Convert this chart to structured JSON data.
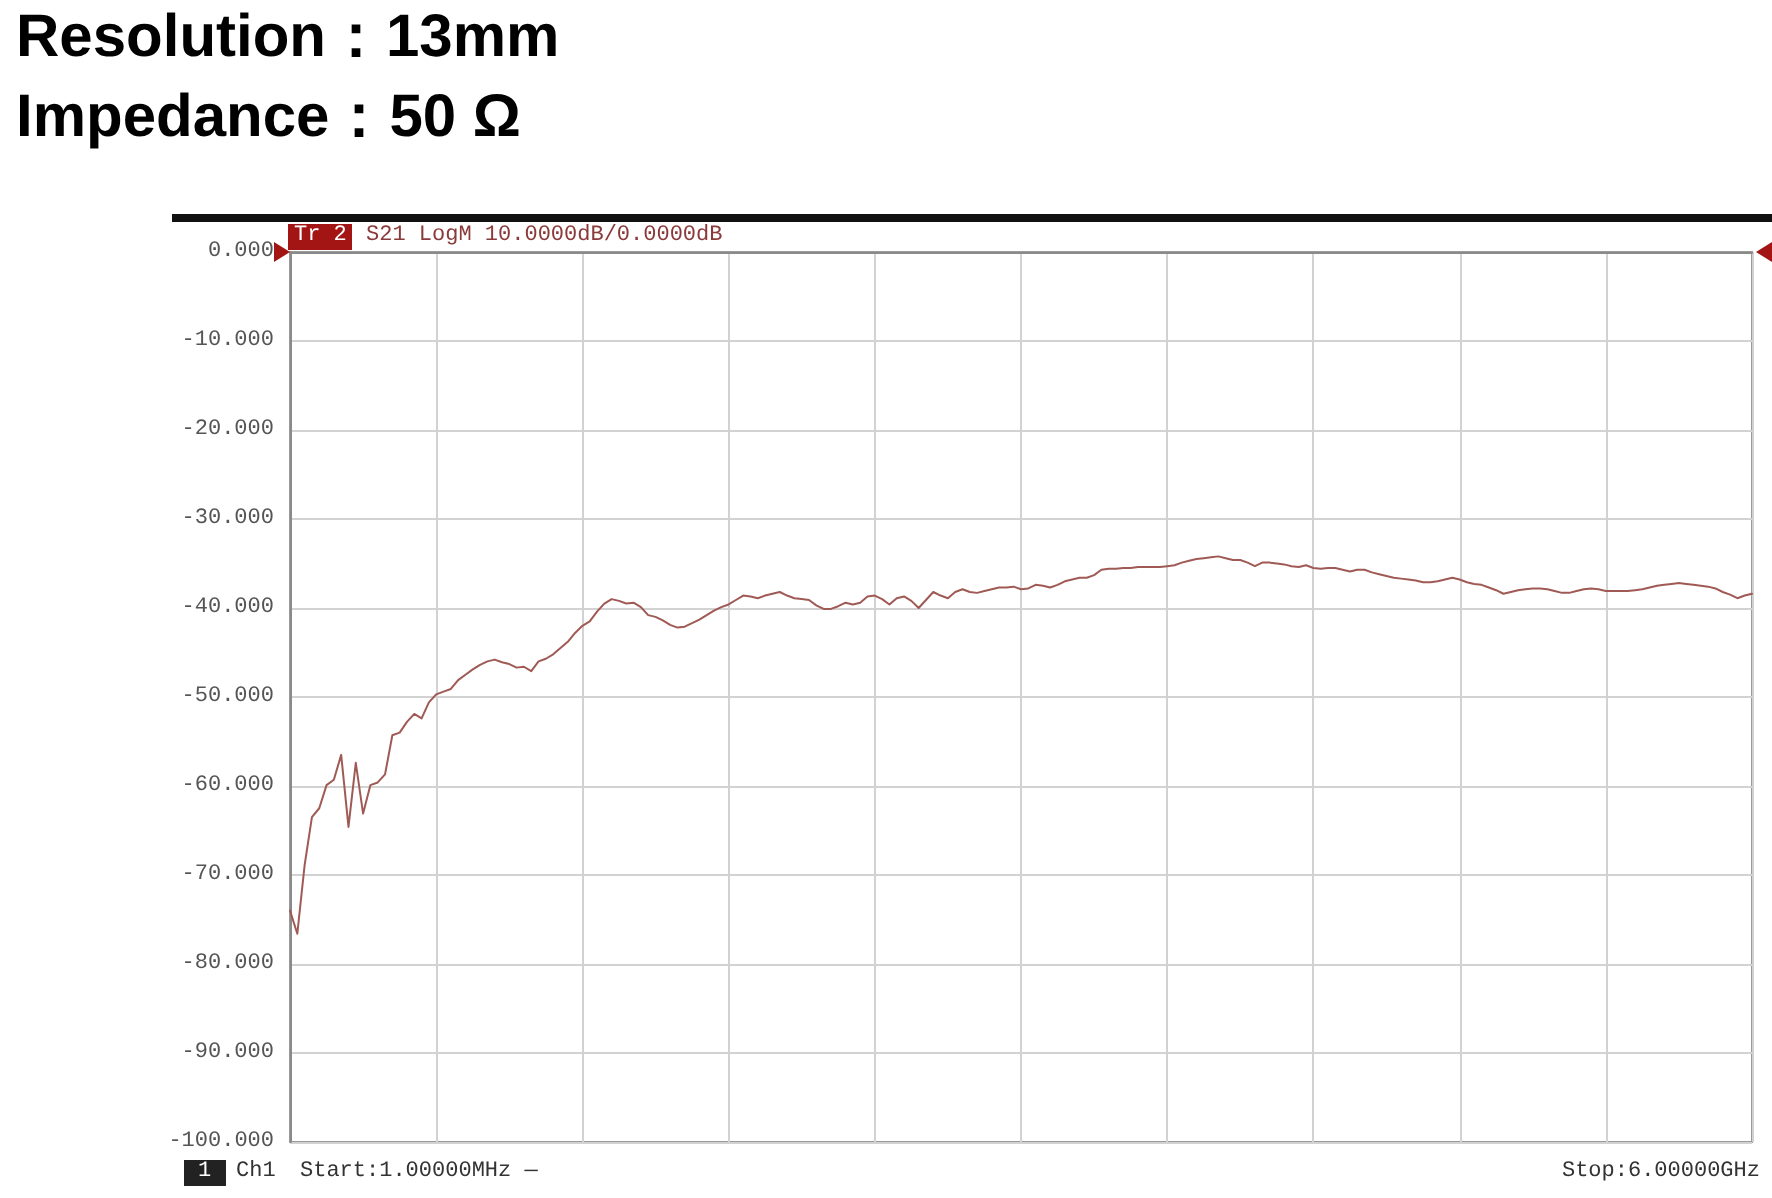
{
  "chart_data": {
    "type": "line",
    "title": "Resolution：13mm",
    "subtitle": "Impedance：50 Ω",
    "annotations": [
      "Tr 2",
      "S21 LogM 10.0000dB/0.0000dB",
      "1",
      "Ch1",
      "Start:1.00000MHz —",
      "Stop:6.00000GHz"
    ],
    "categories": [
      null,
      null,
      null,
      null,
      null,
      null,
      null,
      null,
      null,
      null,
      null,
      null,
      null,
      null,
      null,
      null,
      null,
      null,
      null,
      null,
      null,
      null,
      null,
      null,
      null,
      null,
      null,
      null,
      null,
      null,
      null,
      null,
      null,
      null,
      null,
      null,
      null,
      null,
      null,
      null,
      null,
      null,
      null,
      null,
      null,
      null,
      null,
      null,
      null,
      null,
      null,
      null,
      null,
      null,
      null,
      null,
      null,
      null,
      null,
      null,
      null,
      null,
      null,
      null,
      null,
      null,
      null,
      null,
      null,
      null,
      null,
      null,
      null,
      null,
      null,
      null,
      null,
      null,
      null,
      null,
      null,
      null,
      null,
      null,
      null,
      null,
      null,
      null,
      null,
      null,
      null,
      null,
      null,
      null,
      null,
      null,
      null,
      null,
      null,
      null,
      null,
      null,
      null,
      null,
      null,
      null,
      null,
      null,
      null,
      null,
      null,
      null,
      null,
      null,
      null,
      null,
      null,
      null,
      null,
      null,
      null,
      null,
      null,
      null,
      null,
      null,
      null,
      null,
      null,
      null,
      null,
      null,
      null,
      null,
      null,
      null,
      null,
      null,
      null,
      null,
      null,
      null,
      null,
      null,
      null,
      null,
      null,
      null,
      null,
      null,
      null,
      null,
      null,
      null,
      null,
      null,
      null,
      null,
      null,
      null,
      null,
      null,
      null,
      null,
      null,
      null,
      null,
      null,
      null,
      null,
      null,
      null,
      null,
      null,
      null,
      null,
      null,
      null,
      null,
      null,
      null,
      null,
      null,
      null,
      null,
      null,
      null,
      null,
      null,
      null,
      null,
      null,
      null,
      null,
      null,
      null,
      null,
      null,
      null,
      null,
      null
    ],
    "values": [
      -74.0,
      -76.6,
      -68.9,
      -63.5,
      -62.5,
      -59.9,
      -59.3,
      -56.5,
      -64.6,
      -57.4,
      -63.1,
      -59.9,
      -59.6,
      -58.7,
      -54.3,
      -54.0,
      -52.8,
      -51.9,
      -52.4,
      -50.6,
      -49.7,
      -49.4,
      -49.1,
      -48.1,
      -47.5,
      -46.9,
      -46.4,
      -46.0,
      -45.8,
      -46.1,
      -46.3,
      -46.7,
      -46.6,
      -47.1,
      -46.0,
      -45.7,
      -45.2,
      -44.5,
      -43.8,
      -42.8,
      -42.0,
      -41.5,
      -40.4,
      -39.5,
      -39.0,
      -39.2,
      -39.5,
      -39.4,
      -39.9,
      -40.8,
      -41.0,
      -41.4,
      -41.9,
      -42.2,
      -42.1,
      -41.7,
      -41.3,
      -40.8,
      -40.3,
      -39.9,
      -39.6,
      -39.1,
      -38.6,
      -38.7,
      -38.9,
      -38.6,
      -38.4,
      -38.2,
      -38.6,
      -38.9,
      -39.0,
      -39.1,
      -39.7,
      -40.1,
      -40.1,
      -39.8,
      -39.4,
      -39.6,
      -39.4,
      -38.7,
      -38.6,
      -39.0,
      -39.6,
      -38.9,
      -38.7,
      -39.2,
      -40.0,
      -39.1,
      -38.2,
      -38.6,
      -38.9,
      -38.2,
      -37.9,
      -38.2,
      -38.3,
      -38.1,
      -37.9,
      -37.7,
      -37.7,
      -37.6,
      -37.9,
      -37.8,
      -37.4,
      -37.5,
      -37.7,
      -37.4,
      -37.0,
      -36.8,
      -36.6,
      -36.6,
      -36.3,
      -35.7,
      -35.6,
      -35.6,
      -35.5,
      -35.5,
      -35.4,
      -35.4,
      -35.4,
      -35.4,
      -35.3,
      -35.2,
      -34.9,
      -34.7,
      -34.5,
      -34.4,
      -34.3,
      -34.2,
      -34.4,
      -34.6,
      -34.6,
      -34.9,
      -35.3,
      -34.9,
      -34.9,
      -35.0,
      -35.1,
      -35.3,
      -35.4,
      -35.2,
      -35.5,
      -35.6,
      -35.5,
      -35.5,
      -35.7,
      -35.9,
      -35.7,
      -35.7,
      -36.0,
      -36.2,
      -36.4,
      -36.6,
      -36.7,
      -36.8,
      -36.9,
      -37.1,
      -37.1,
      -37.0,
      -36.8,
      -36.6,
      -36.8,
      -37.1,
      -37.3,
      -37.4,
      -37.7,
      -38.0,
      -38.4,
      -38.2,
      -38.0,
      -37.9,
      -37.8,
      -37.8,
      -37.9,
      -38.1,
      -38.3,
      -38.3,
      -38.1,
      -37.9,
      -37.8,
      -37.9,
      -38.1,
      -38.1,
      -38.1,
      -38.1,
      -38.0,
      -37.9,
      -37.7,
      -37.5,
      -37.4,
      -37.3,
      -37.2,
      -37.3,
      -37.4,
      -37.5,
      -37.6,
      -37.8,
      -38.2,
      -38.5,
      -38.9,
      -38.6,
      -38.4
    ],
    "color": "#a05a55",
    "ylim": [
      -100,
      0
    ],
    "yticks": [
      {
        "value": 0,
        "label": "0.000"
      },
      {
        "value": -10,
        "label": "-10.000"
      },
      {
        "value": -20,
        "label": "-20.000"
      },
      {
        "value": -30,
        "label": "-30.000"
      },
      {
        "value": -40,
        "label": "-40.000"
      },
      {
        "value": -50,
        "label": "-50.000"
      },
      {
        "value": -60,
        "label": "-60.000"
      },
      {
        "value": -70,
        "label": "-70.000"
      },
      {
        "value": -80,
        "label": "-80.000"
      },
      {
        "value": -90,
        "label": "-90.000"
      },
      {
        "value": -100,
        "label": "-100.000"
      }
    ],
    "tick_labels": "y",
    "grid": true
  }
}
